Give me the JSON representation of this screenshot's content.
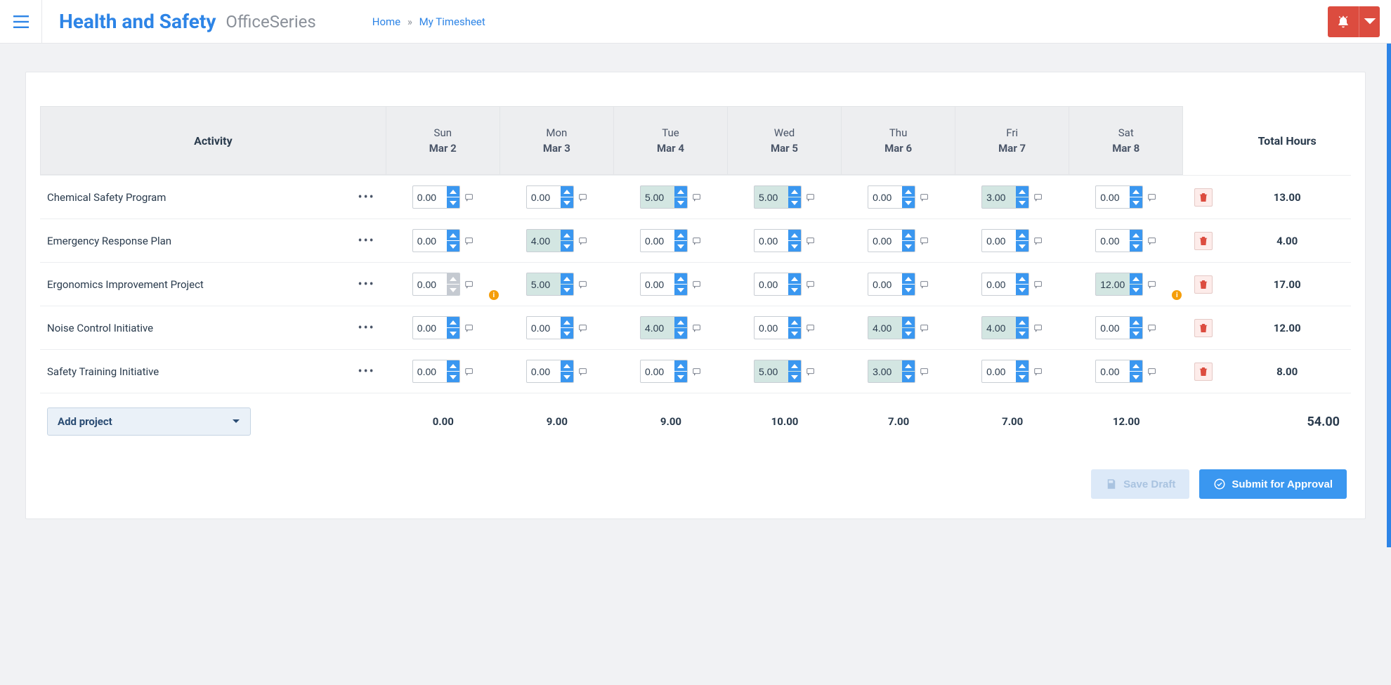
{
  "header": {
    "app_title": "Health and Safety",
    "app_subtitle": "OfficeSeries",
    "breadcrumb": {
      "home": "Home",
      "current": "My Timesheet"
    }
  },
  "table": {
    "activity_header": "Activity",
    "total_header": "Total Hours",
    "days": [
      {
        "dow": "Sun",
        "date": "Mar 2"
      },
      {
        "dow": "Mon",
        "date": "Mar 3"
      },
      {
        "dow": "Tue",
        "date": "Mar 4"
      },
      {
        "dow": "Wed",
        "date": "Mar 5"
      },
      {
        "dow": "Thu",
        "date": "Mar 6"
      },
      {
        "dow": "Fri",
        "date": "Mar 7"
      },
      {
        "dow": "Sat",
        "date": "Mar 8"
      }
    ],
    "rows": [
      {
        "activity": "Chemical Safety Program",
        "cells": [
          {
            "v": "0.00",
            "filled": false
          },
          {
            "v": "0.00",
            "filled": false
          },
          {
            "v": "5.00",
            "filled": true
          },
          {
            "v": "5.00",
            "filled": true
          },
          {
            "v": "0.00",
            "filled": false
          },
          {
            "v": "3.00",
            "filled": true
          },
          {
            "v": "0.00",
            "filled": false
          }
        ],
        "total": "13.00"
      },
      {
        "activity": "Emergency Response Plan",
        "cells": [
          {
            "v": "0.00",
            "filled": false
          },
          {
            "v": "4.00",
            "filled": true
          },
          {
            "v": "0.00",
            "filled": false
          },
          {
            "v": "0.00",
            "filled": false
          },
          {
            "v": "0.00",
            "filled": false
          },
          {
            "v": "0.00",
            "filled": false
          },
          {
            "v": "0.00",
            "filled": false
          }
        ],
        "total": "4.00"
      },
      {
        "activity": "Ergonomics Improvement Project",
        "cells": [
          {
            "v": "0.00",
            "filled": false,
            "disabled": true,
            "warn": true
          },
          {
            "v": "5.00",
            "filled": true
          },
          {
            "v": "0.00",
            "filled": false
          },
          {
            "v": "0.00",
            "filled": false
          },
          {
            "v": "0.00",
            "filled": false
          },
          {
            "v": "0.00",
            "filled": false
          },
          {
            "v": "12.00",
            "filled": true,
            "warn": true
          }
        ],
        "total": "17.00"
      },
      {
        "activity": "Noise Control Initiative",
        "cells": [
          {
            "v": "0.00",
            "filled": false
          },
          {
            "v": "0.00",
            "filled": false
          },
          {
            "v": "4.00",
            "filled": true
          },
          {
            "v": "0.00",
            "filled": false
          },
          {
            "v": "4.00",
            "filled": true
          },
          {
            "v": "4.00",
            "filled": true
          },
          {
            "v": "0.00",
            "filled": false
          }
        ],
        "total": "12.00"
      },
      {
        "activity": "Safety Training Initiative",
        "cells": [
          {
            "v": "0.00",
            "filled": false
          },
          {
            "v": "0.00",
            "filled": false
          },
          {
            "v": "0.00",
            "filled": false
          },
          {
            "v": "5.00",
            "filled": true
          },
          {
            "v": "3.00",
            "filled": true
          },
          {
            "v": "0.00",
            "filled": false
          },
          {
            "v": "0.00",
            "filled": false
          }
        ],
        "total": "8.00"
      }
    ],
    "col_totals": [
      "0.00",
      "9.00",
      "9.00",
      "10.00",
      "7.00",
      "7.00",
      "12.00"
    ],
    "grand_total": "54.00",
    "add_project_label": "Add project"
  },
  "actions": {
    "save_draft": "Save Draft",
    "submit": "Submit for Approval"
  },
  "colors": {
    "primary": "#2d84e6",
    "spinner_blue": "#3a97f0",
    "filled_bg": "#d3e6e2",
    "danger": "#dc4c3f",
    "warn": "#f59e0b",
    "header_bg": "#edeef0",
    "page_bg": "#f1f2f4"
  }
}
